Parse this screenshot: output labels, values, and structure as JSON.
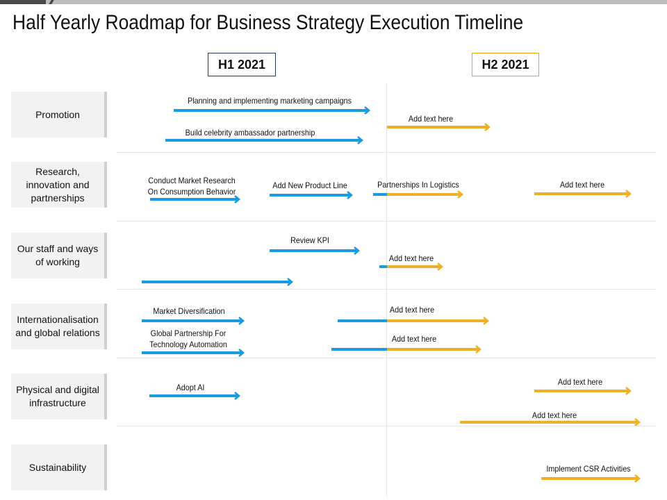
{
  "title": "Half Yearly Roadmap for Business Strategy Execution Timeline",
  "periods": {
    "h1": "H1 2021",
    "h2": "H2 2021"
  },
  "colors": {
    "h1": "#1a9ae0",
    "h2": "#f0b025",
    "row_bg": "#f2f2f2",
    "period_h1_border": "#1f3a5a",
    "period_h2_border": "#f0a500"
  },
  "rows": [
    {
      "label": "Promotion"
    },
    {
      "label": "Research, innovation and partnerships"
    },
    {
      "label": "Our staff and ways of working"
    },
    {
      "label": "Internationalisation and global relations"
    },
    {
      "label": "Physical and digital infrastructure"
    },
    {
      "label": "Sustainability"
    }
  ],
  "labels": {
    "planning": "Planning and implementing marketing campaigns",
    "celebrity": "Build celebrity ambassador partnership",
    "promo_add": "Add text here",
    "market_research_1": "Conduct Market Research",
    "market_research_2": "On Consumption Behavior",
    "product_line": "Add New Product Line",
    "logistics": "Partnerships In Logistics",
    "research_add": "Add text here",
    "review_kpi": "Review KPI",
    "staff_add": "Add text here",
    "market_div": "Market Diversification",
    "intl_add_1": "Add text here",
    "global_1": "Global Partnership For",
    "global_2": "Technology Automation",
    "intl_add_2": "Add text here",
    "adopt_ai": "Adopt AI",
    "infra_add_1": "Add text here",
    "infra_add_2": "Add text here",
    "csr": "Implement CSR Activities"
  }
}
